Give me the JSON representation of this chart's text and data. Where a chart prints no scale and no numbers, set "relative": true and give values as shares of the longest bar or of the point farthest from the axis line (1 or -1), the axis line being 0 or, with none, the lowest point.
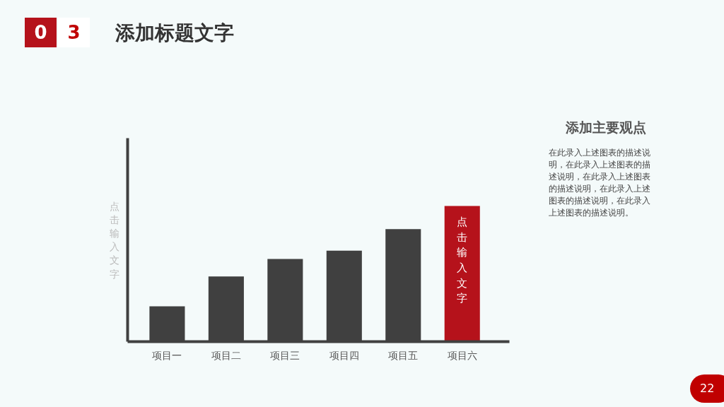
{
  "chart_data": {
    "type": "bar",
    "title": "添加标题文字",
    "ylabel": "点击输入文字",
    "relative": true,
    "grid": false,
    "legend": false,
    "categories": [
      "项目一",
      "项目二",
      "项目三",
      "项目四",
      "项目五",
      "项目六"
    ],
    "values": [
      0.26,
      0.48,
      0.61,
      0.67,
      0.83,
      1.0
    ],
    "colors": [
      "#404040",
      "#404040",
      "#404040",
      "#404040",
      "#404040",
      "#b5121b"
    ],
    "annotations": [
      "点击输入文字",
      "0 3",
      "添加主要观点",
      "在此录入上述图表的描述说明，在此录入上述图表的描述说明，在此录入上述图表的描述说明，在此录入上述图表的描述说明，在此录入上述图表的描述说明。",
      "22"
    ]
  }
}
